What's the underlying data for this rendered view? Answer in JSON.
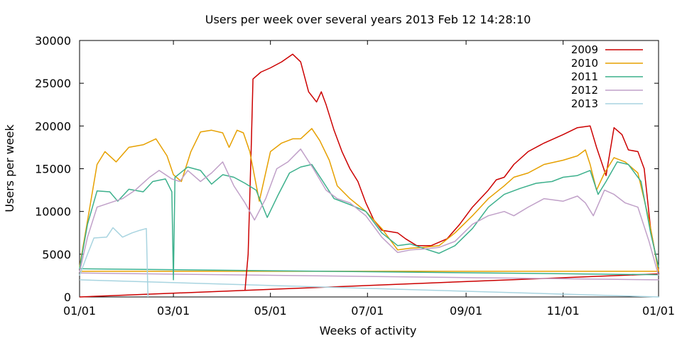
{
  "chart_data": {
    "type": "line",
    "title": "Users per week over several years  2013 Feb 12  14:28:10",
    "xlabel": "Weeks of activity",
    "ylabel": "Users per week",
    "xlim": [
      "01/01",
      "12/31"
    ],
    "ylim": [
      0,
      30000
    ],
    "yticks": [
      "0",
      "5000",
      "10000",
      "15000",
      "20000",
      "25000",
      "30000"
    ],
    "xticks": [
      "01/01",
      "03/01",
      "05/01",
      "07/01",
      "09/01",
      "11/01",
      "01/01"
    ],
    "legend_position": "top-right",
    "grid": false,
    "series": [
      {
        "name": "2009",
        "color": "#cc0000",
        "points": [
          [
            "04/15",
            800
          ],
          [
            "04/17",
            5000
          ],
          [
            "04/19",
            18000
          ],
          [
            "04/20",
            25500
          ],
          [
            "04/25",
            26300
          ],
          [
            "05/01",
            26800
          ],
          [
            "05/08",
            27500
          ],
          [
            "05/15",
            28400
          ],
          [
            "05/20",
            27500
          ],
          [
            "05/25",
            24000
          ],
          [
            "05/30",
            22800
          ],
          [
            "06/02",
            24000
          ],
          [
            "06/05",
            22500
          ],
          [
            "06/10",
            19500
          ],
          [
            "06/15",
            17000
          ],
          [
            "06/20",
            15000
          ],
          [
            "06/25",
            13500
          ],
          [
            "06/30",
            11000
          ],
          [
            "07/05",
            9000
          ],
          [
            "07/10",
            7800
          ],
          [
            "07/20",
            7500
          ],
          [
            "07/25",
            6800
          ],
          [
            "08/01",
            6000
          ],
          [
            "08/10",
            6000
          ],
          [
            "08/20",
            6800
          ],
          [
            "08/28",
            8500
          ],
          [
            "09/05",
            10500
          ],
          [
            "09/15",
            12500
          ],
          [
            "09/20",
            13700
          ],
          [
            "09/25",
            14000
          ],
          [
            "10/01",
            15500
          ],
          [
            "10/10",
            17000
          ],
          [
            "10/20",
            18000
          ],
          [
            "11/01",
            19000
          ],
          [
            "11/10",
            19800
          ],
          [
            "11/18",
            20000
          ],
          [
            "11/22",
            17500
          ],
          [
            "11/28",
            14200
          ],
          [
            "12/03",
            19800
          ],
          [
            "12/08",
            19000
          ],
          [
            "12/12",
            17200
          ],
          [
            "12/18",
            17000
          ],
          [
            "12/22",
            15000
          ],
          [
            "12/26",
            8000
          ],
          [
            "12/31",
            3000
          ]
        ]
      },
      {
        "name": "2010",
        "color": "#e6a000",
        "points": [
          [
            "01/01",
            3500
          ],
          [
            "01/07",
            10000
          ],
          [
            "01/12",
            15500
          ],
          [
            "01/17",
            17000
          ],
          [
            "01/24",
            15800
          ],
          [
            "02/01",
            17500
          ],
          [
            "02/10",
            17800
          ],
          [
            "02/18",
            18500
          ],
          [
            "02/25",
            16500
          ],
          [
            "03/01",
            14300
          ],
          [
            "03/06",
            13500
          ],
          [
            "03/12",
            17000
          ],
          [
            "03/18",
            19300
          ],
          [
            "03/25",
            19500
          ],
          [
            "04/01",
            19200
          ],
          [
            "04/05",
            17500
          ],
          [
            "04/10",
            19500
          ],
          [
            "04/14",
            19200
          ],
          [
            "04/18",
            17000
          ],
          [
            "04/24",
            11200
          ],
          [
            "05/01",
            17000
          ],
          [
            "05/08",
            18000
          ],
          [
            "05/15",
            18500
          ],
          [
            "05/20",
            18500
          ],
          [
            "05/27",
            19700
          ],
          [
            "06/01",
            18300
          ],
          [
            "06/07",
            16000
          ],
          [
            "06/12",
            13000
          ],
          [
            "06/20",
            11500
          ],
          [
            "06/30",
            10000
          ],
          [
            "07/10",
            8000
          ],
          [
            "07/20",
            5500
          ],
          [
            "07/28",
            5700
          ],
          [
            "08/05",
            5800
          ],
          [
            "08/15",
            6000
          ],
          [
            "08/25",
            7500
          ],
          [
            "09/05",
            9500
          ],
          [
            "09/15",
            11500
          ],
          [
            "09/25",
            13000
          ],
          [
            "10/01",
            14000
          ],
          [
            "10/10",
            14500
          ],
          [
            "10/20",
            15500
          ],
          [
            "11/01",
            16000
          ],
          [
            "11/10",
            16500
          ],
          [
            "11/15",
            17200
          ],
          [
            "11/18",
            15500
          ],
          [
            "11/22",
            12500
          ],
          [
            "11/27",
            14500
          ],
          [
            "12/03",
            16300
          ],
          [
            "12/10",
            15800
          ],
          [
            "12/18",
            14500
          ],
          [
            "12/25",
            9000
          ],
          [
            "12/31",
            3000
          ]
        ]
      },
      {
        "name": "2011",
        "color": "#3cb08c",
        "points": [
          [
            "01/01",
            3300
          ],
          [
            "01/06",
            8500
          ],
          [
            "01/12",
            12400
          ],
          [
            "01/20",
            12300
          ],
          [
            "01/25",
            11200
          ],
          [
            "02/01",
            12600
          ],
          [
            "02/10",
            12300
          ],
          [
            "02/16",
            13500
          ],
          [
            "02/24",
            13800
          ],
          [
            "02/28",
            12300
          ],
          [
            "03/01",
            2000
          ],
          [
            "03/02",
            14000
          ],
          [
            "03/10",
            15200
          ],
          [
            "03/18",
            14800
          ],
          [
            "03/25",
            13200
          ],
          [
            "04/01",
            14300
          ],
          [
            "04/08",
            14000
          ],
          [
            "04/15",
            13300
          ],
          [
            "04/22",
            12500
          ],
          [
            "04/29",
            9300
          ],
          [
            "05/06",
            12000
          ],
          [
            "05/13",
            14500
          ],
          [
            "05/20",
            15200
          ],
          [
            "05/27",
            15500
          ],
          [
            "06/03",
            13500
          ],
          [
            "06/10",
            11500
          ],
          [
            "06/20",
            10800
          ],
          [
            "06/30",
            10000
          ],
          [
            "07/10",
            7500
          ],
          [
            "07/20",
            6000
          ],
          [
            "07/28",
            6200
          ],
          [
            "08/05",
            5700
          ],
          [
            "08/15",
            5100
          ],
          [
            "08/25",
            6000
          ],
          [
            "09/05",
            8000
          ],
          [
            "09/15",
            10500
          ],
          [
            "09/25",
            12000
          ],
          [
            "10/05",
            12700
          ],
          [
            "10/15",
            13300
          ],
          [
            "10/25",
            13500
          ],
          [
            "11/01",
            14000
          ],
          [
            "11/10",
            14200
          ],
          [
            "11/18",
            14800
          ],
          [
            "11/23",
            12000
          ],
          [
            "11/28",
            13500
          ],
          [
            "12/05",
            15800
          ],
          [
            "12/12",
            15500
          ],
          [
            "12/20",
            13500
          ],
          [
            "12/26",
            7500
          ],
          [
            "12/31",
            3500
          ]
        ]
      },
      {
        "name": "2012",
        "color": "#c0a0c8",
        "points": [
          [
            "01/01",
            2900
          ],
          [
            "01/06",
            7000
          ],
          [
            "01/12",
            10500
          ],
          [
            "01/20",
            11000
          ],
          [
            "01/28",
            11500
          ],
          [
            "02/05",
            12500
          ],
          [
            "02/14",
            14000
          ],
          [
            "02/20",
            14800
          ],
          [
            "02/28",
            13800
          ],
          [
            "03/05",
            13500
          ],
          [
            "03/10",
            14800
          ],
          [
            "03/18",
            13500
          ],
          [
            "03/25",
            14500
          ],
          [
            "04/01",
            15800
          ],
          [
            "04/08",
            13000
          ],
          [
            "04/15",
            11000
          ],
          [
            "04/21",
            9000
          ],
          [
            "04/28",
            11500
          ],
          [
            "05/05",
            15000
          ],
          [
            "05/12",
            15800
          ],
          [
            "05/20",
            17300
          ],
          [
            "05/28",
            15000
          ],
          [
            "06/05",
            12500
          ],
          [
            "06/12",
            11500
          ],
          [
            "06/20",
            11000
          ],
          [
            "06/30",
            9500
          ],
          [
            "07/10",
            7000
          ],
          [
            "07/20",
            5200
          ],
          [
            "07/28",
            5500
          ],
          [
            "08/05",
            5600
          ],
          [
            "08/15",
            5800
          ],
          [
            "08/25",
            6500
          ],
          [
            "09/05",
            8500
          ],
          [
            "09/15",
            9500
          ],
          [
            "09/25",
            10000
          ],
          [
            "10/01",
            9500
          ],
          [
            "10/10",
            10500
          ],
          [
            "10/20",
            11500
          ],
          [
            "11/01",
            11200
          ],
          [
            "11/10",
            11800
          ],
          [
            "11/15",
            11000
          ],
          [
            "11/20",
            9500
          ],
          [
            "11/27",
            12500
          ],
          [
            "12/03",
            12000
          ],
          [
            "12/10",
            11000
          ],
          [
            "12/18",
            10500
          ],
          [
            "12/25",
            6500
          ],
          [
            "12/31",
            2500
          ]
        ]
      },
      {
        "name": "2013",
        "color": "#a8d4e0",
        "points": [
          [
            "01/01",
            2500
          ],
          [
            "01/06",
            5000
          ],
          [
            "01/10",
            6900
          ],
          [
            "01/18",
            7000
          ],
          [
            "01/22",
            8100
          ],
          [
            "01/28",
            7000
          ],
          [
            "02/03",
            7500
          ],
          [
            "02/08",
            7800
          ],
          [
            "02/12",
            8000
          ],
          [
            "02/13",
            0
          ]
        ]
      }
    ],
    "baselines": [
      {
        "series": "2009",
        "from": [
          "01/01",
          0
        ],
        "to": [
          "12/31",
          2700
        ]
      },
      {
        "series": "2010",
        "from": [
          "01/01",
          3000
        ],
        "to": [
          "12/31",
          3000
        ]
      },
      {
        "series": "2011",
        "from": [
          "01/01",
          3300
        ],
        "to": [
          "12/31",
          2600
        ]
      },
      {
        "series": "2012",
        "from": [
          "01/01",
          2800
        ],
        "to": [
          "12/31",
          2000
        ]
      },
      {
        "series": "2013",
        "from": [
          "01/01",
          2000
        ],
        "to": [
          "12/31",
          0
        ]
      }
    ]
  }
}
